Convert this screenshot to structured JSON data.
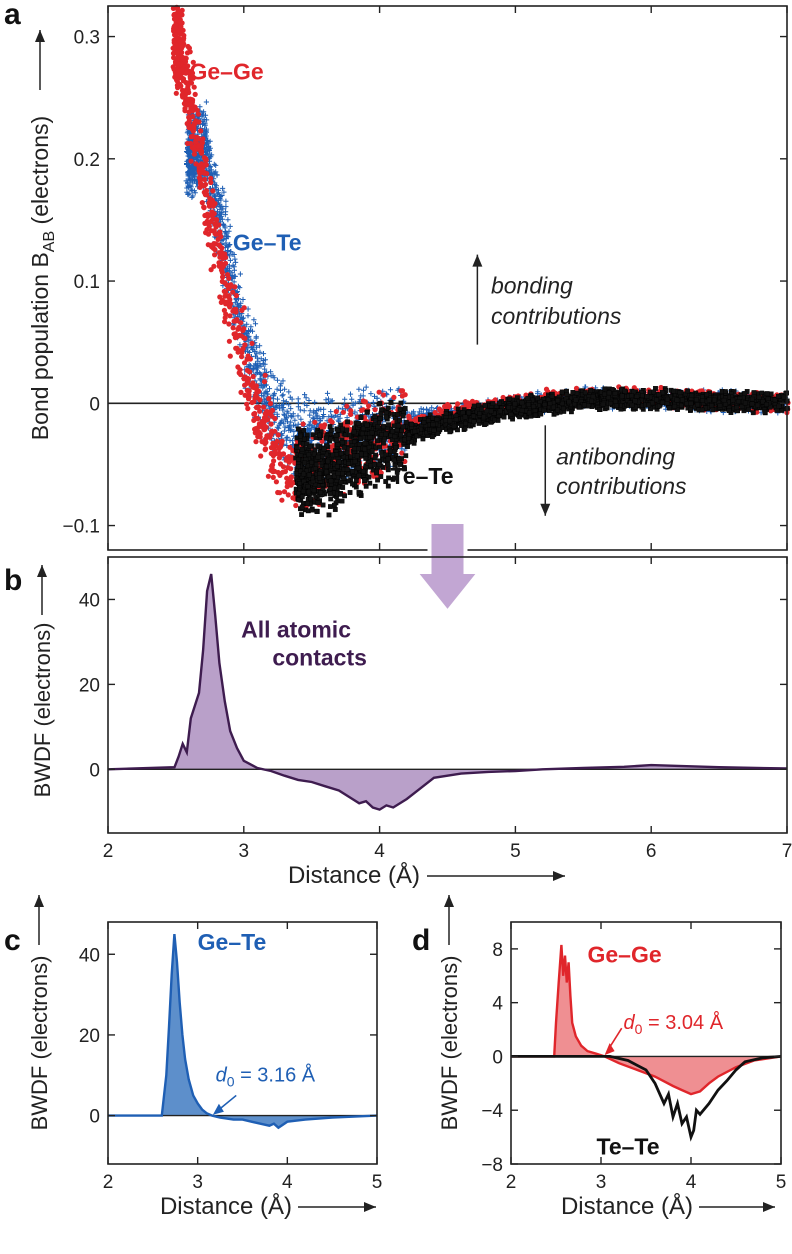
{
  "figure": {
    "panel_labels": [
      "a",
      "b",
      "c",
      "d"
    ],
    "colors": {
      "gege": "#e0262b",
      "gete": "#1f5fb4",
      "tete": "#111111",
      "all": "#3e1c4f",
      "all_fill": "#b9a0c9",
      "gete_fill": "#5d8fcb",
      "gege_fill": "#ef8f92",
      "arrow": "#c2a6d3"
    }
  },
  "chart_data": [
    {
      "panel": "a",
      "type": "scatter",
      "ylabel": "Bond population B",
      "ylabel_sub": "AB",
      "ylabel_unit": " (electrons)",
      "xlim": [
        2,
        7
      ],
      "ylim": [
        -0.12,
        0.325
      ],
      "yticks": [
        -0.1,
        0,
        0.1,
        0.2,
        0.3
      ],
      "ytick_labels": [
        "−0.1",
        "0",
        "0.1",
        "0.2",
        "0.3"
      ],
      "annotations": {
        "bonding": [
          "bonding",
          "contributions"
        ],
        "antibonding": [
          "antibonding",
          "contributions"
        ]
      },
      "series": [
        {
          "name": "Ge–Ge",
          "marker": "circle",
          "curve": [
            [
              2.5,
              0.295
            ],
            [
              2.55,
              0.28
            ],
            [
              2.6,
              0.245
            ],
            [
              2.7,
              0.19
            ],
            [
              2.8,
              0.13
            ],
            [
              2.9,
              0.078
            ],
            [
              3.0,
              0.035
            ],
            [
              3.1,
              0.0
            ],
            [
              3.2,
              -0.03
            ],
            [
              3.3,
              -0.05
            ],
            [
              3.4,
              -0.056
            ],
            [
              3.5,
              -0.052
            ],
            [
              3.7,
              -0.04
            ],
            [
              4.0,
              -0.025
            ],
            [
              4.5,
              -0.01
            ],
            [
              5.0,
              0.0
            ],
            [
              5.5,
              0.005
            ],
            [
              6.0,
              0.005
            ],
            [
              6.5,
              0.002
            ],
            [
              7.0,
              0.0
            ]
          ]
        },
        {
          "name": "Ge–Te",
          "marker": "plus",
          "curve": [
            [
              2.6,
              0.2
            ],
            [
              2.7,
              0.215
            ],
            [
              2.8,
              0.16
            ],
            [
              2.9,
              0.105
            ],
            [
              3.0,
              0.055
            ],
            [
              3.1,
              0.02
            ],
            [
              3.2,
              -0.005
            ],
            [
              3.3,
              -0.018
            ],
            [
              3.4,
              -0.025
            ],
            [
              3.6,
              -0.028
            ],
            [
              3.8,
              -0.025
            ],
            [
              4.0,
              -0.02
            ],
            [
              4.5,
              -0.01
            ],
            [
              5.0,
              -0.002
            ],
            [
              5.5,
              0.005
            ],
            [
              6.0,
              0.004
            ],
            [
              6.5,
              0.002
            ],
            [
              7.0,
              0.0
            ]
          ]
        },
        {
          "name": "Te–Te",
          "marker": "square",
          "curve": [
            [
              3.4,
              -0.055
            ],
            [
              3.5,
              -0.058
            ],
            [
              3.6,
              -0.055
            ],
            [
              3.7,
              -0.05
            ],
            [
              3.8,
              -0.045
            ],
            [
              4.0,
              -0.035
            ],
            [
              4.2,
              -0.025
            ],
            [
              4.5,
              -0.015
            ],
            [
              5.0,
              -0.004
            ],
            [
              5.5,
              0.003
            ],
            [
              6.0,
              0.004
            ],
            [
              6.5,
              0.002
            ],
            [
              7.0,
              0.0
            ]
          ]
        }
      ]
    },
    {
      "panel": "b",
      "type": "area",
      "series_label": [
        "All atomic",
        "contacts"
      ],
      "xlabel": "Distance (Å)",
      "ylabel": "BWDF (electrons)",
      "xlim": [
        2,
        7
      ],
      "ylim": [
        -15,
        50
      ],
      "xticks": [
        2,
        3,
        4,
        5,
        6,
        7
      ],
      "yticks": [
        0,
        20,
        40
      ],
      "x": [
        2.0,
        2.49,
        2.52,
        2.55,
        2.58,
        2.61,
        2.64,
        2.67,
        2.7,
        2.73,
        2.76,
        2.79,
        2.82,
        2.86,
        2.9,
        2.95,
        3.0,
        3.1,
        3.2,
        3.3,
        3.4,
        3.5,
        3.6,
        3.7,
        3.8,
        3.85,
        3.9,
        3.95,
        4.0,
        4.05,
        4.1,
        4.2,
        4.3,
        4.4,
        4.6,
        4.8,
        5.0,
        5.2,
        5.5,
        5.8,
        6.0,
        6.2,
        6.5,
        7.0
      ],
      "y": [
        0,
        0.5,
        3,
        6,
        4,
        12,
        15,
        18,
        28,
        42,
        46,
        36,
        25,
        16,
        9,
        5,
        2,
        0.3,
        -0.4,
        -1.5,
        -2.5,
        -3,
        -4,
        -5,
        -7,
        -8,
        -7.5,
        -9,
        -9.5,
        -8.5,
        -9,
        -7,
        -4.5,
        -2,
        -1,
        -0.6,
        -0.4,
        0,
        0.3,
        0.6,
        1,
        0.8,
        0.5,
        0.2
      ]
    },
    {
      "panel": "c",
      "type": "area",
      "series_label": "Ge–Te",
      "xlabel": "Distance (Å)",
      "ylabel": "BWDF (electrons)",
      "xlim": [
        2,
        5
      ],
      "ylim": [
        -12,
        48
      ],
      "xticks": [
        2,
        3,
        4,
        5
      ],
      "yticks": [
        0,
        20,
        40
      ],
      "d0": "3.16",
      "x": [
        2.0,
        2.6,
        2.62,
        2.65,
        2.68,
        2.71,
        2.74,
        2.77,
        2.8,
        2.83,
        2.86,
        2.9,
        2.95,
        3.0,
        3.05,
        3.1,
        3.16,
        3.25,
        3.4,
        3.5,
        3.6,
        3.7,
        3.8,
        3.85,
        3.9,
        4.0,
        4.2,
        4.5,
        5.0
      ],
      "y": [
        0,
        0,
        4,
        10,
        22,
        35,
        45,
        38,
        28,
        20,
        14,
        9,
        5,
        3,
        1.5,
        0.6,
        0,
        -0.5,
        -1,
        -1,
        -1.5,
        -2,
        -2.5,
        -2,
        -3,
        -1.5,
        -1,
        -0.5,
        0
      ]
    },
    {
      "panel": "d",
      "type": "line",
      "xlabel": "Distance (Å)",
      "ylabel": "BWDF (electrons)",
      "xlim": [
        2,
        5
      ],
      "ylim": [
        -8,
        10
      ],
      "xticks": [
        2,
        3,
        4,
        5
      ],
      "yticks": [
        -8,
        -4,
        0,
        4,
        8
      ],
      "ytick_labels": [
        "−8",
        "−4",
        "0",
        "4",
        "8"
      ],
      "d0": "3.04",
      "series": [
        {
          "name": "Ge–Ge",
          "filled": true,
          "x": [
            2.0,
            2.48,
            2.5,
            2.53,
            2.56,
            2.58,
            2.6,
            2.62,
            2.64,
            2.66,
            2.68,
            2.72,
            2.78,
            2.85,
            2.95,
            3.04,
            3.2,
            3.4,
            3.6,
            3.8,
            3.9,
            4.0,
            4.1,
            4.2,
            4.3,
            4.5,
            4.7,
            5.0
          ],
          "y": [
            0,
            0,
            2.5,
            5.5,
            8.3,
            6,
            7.5,
            5.5,
            7,
            4.5,
            2.5,
            1.5,
            0.8,
            0.4,
            0.2,
            0,
            -0.5,
            -1,
            -1.5,
            -2.2,
            -2.5,
            -2.8,
            -2.6,
            -2,
            -1.5,
            -0.8,
            -0.3,
            0
          ]
        },
        {
          "name": "Te–Te",
          "filled": false,
          "x": [
            2.0,
            3.1,
            3.3,
            3.5,
            3.6,
            3.7,
            3.75,
            3.8,
            3.85,
            3.9,
            3.95,
            4.0,
            4.03,
            4.06,
            4.1,
            4.2,
            4.3,
            4.4,
            4.5,
            4.6,
            4.8,
            5.0
          ],
          "y": [
            0,
            0,
            -0.3,
            -1,
            -2,
            -3.5,
            -2.8,
            -4.5,
            -3.5,
            -5,
            -4.5,
            -6,
            -5.5,
            -4,
            -4.3,
            -3.5,
            -2.5,
            -1.8,
            -1,
            -0.4,
            -0.1,
            0
          ]
        }
      ]
    }
  ]
}
